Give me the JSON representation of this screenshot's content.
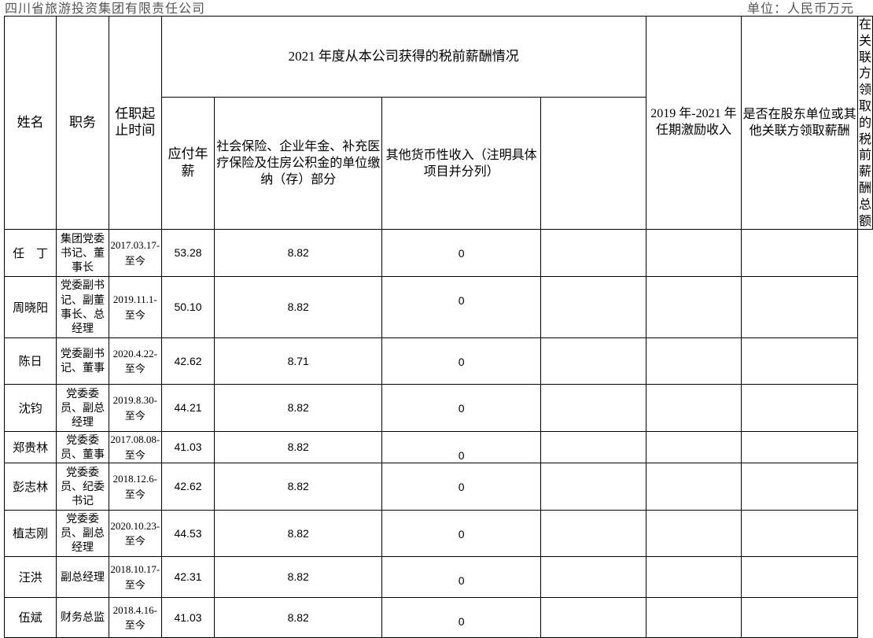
{
  "company": "四川省旅游投资集团有限责任公司",
  "unit": "单位：人民币万元",
  "headers": {
    "name": "姓名",
    "position": "职务",
    "term": "任职起止时间",
    "group_2021": "2021 年度从本公司获得的税前薪酬情况",
    "salary": "应付年薪",
    "social": "社会保险、企业年金、补充医疗保险及住房公积金的单位缴纳（存）部分",
    "other": "其他货币性收入（注明具体项目并分列）",
    "incentive": "2019 年-2021 年任期激励收入",
    "shareholder": "是否在股东单位或其他关联方领取薪酬",
    "related_total": "在关联方领取的税前薪酬总额"
  },
  "rows": [
    {
      "name": "任　丁",
      "position": "集团党委书记、董事长",
      "term": "2017.03.17-至今",
      "salary": "53.28",
      "social": "8.82",
      "other": "0",
      "incentive": "",
      "shareholder": "",
      "related_total": ""
    },
    {
      "name": "周晓阳",
      "position": "党委副书记、副董事长、总经理",
      "term": "2019.11.1-至今",
      "salary": "50.10",
      "social": "8.82",
      "other": "0",
      "incentive": "",
      "shareholder": "",
      "related_total": ""
    },
    {
      "name": "陈日",
      "position": "党委副书记、董事",
      "term": "2020.4.22-至今",
      "salary": "42.62",
      "social": "8.71",
      "other": "0",
      "incentive": "",
      "shareholder": "",
      "related_total": ""
    },
    {
      "name": "沈钧",
      "position": "党委委员、副总经理",
      "term": "2019.8.30-至今",
      "salary": "44.21",
      "social": "8.82",
      "other": "0",
      "incentive": "",
      "shareholder": "",
      "related_total": ""
    },
    {
      "name": "郑贵林",
      "position": "党委委员、董事",
      "term": "2017.08.08-至今",
      "salary": "41.03",
      "social": "8.82",
      "other": "0",
      "incentive": "",
      "shareholder": "",
      "related_total": ""
    },
    {
      "name": "彭志林",
      "position": "党委委员、纪委书记",
      "term": "2018.12.6-至今",
      "salary": "42.62",
      "social": "8.82",
      "other": "0",
      "incentive": "",
      "shareholder": "",
      "related_total": ""
    },
    {
      "name": "植志刚",
      "position": "党委委员、副总经理",
      "term": "2020.10.23-至今",
      "salary": "44.53",
      "social": "8.82",
      "other": "0",
      "incentive": "",
      "shareholder": "",
      "related_total": ""
    },
    {
      "name": "汪洪",
      "position": "副总经理",
      "term": "2018.10.17-至今",
      "salary": "42.31",
      "social": "8.82",
      "other": "0",
      "incentive": "",
      "shareholder": "",
      "related_total": ""
    },
    {
      "name": "伍斌",
      "position": "财务总监",
      "term": "2018.4.16-至今",
      "salary": "41.03",
      "social": "8.82",
      "other": "0",
      "incentive": "",
      "shareholder": "",
      "related_total": ""
    }
  ]
}
